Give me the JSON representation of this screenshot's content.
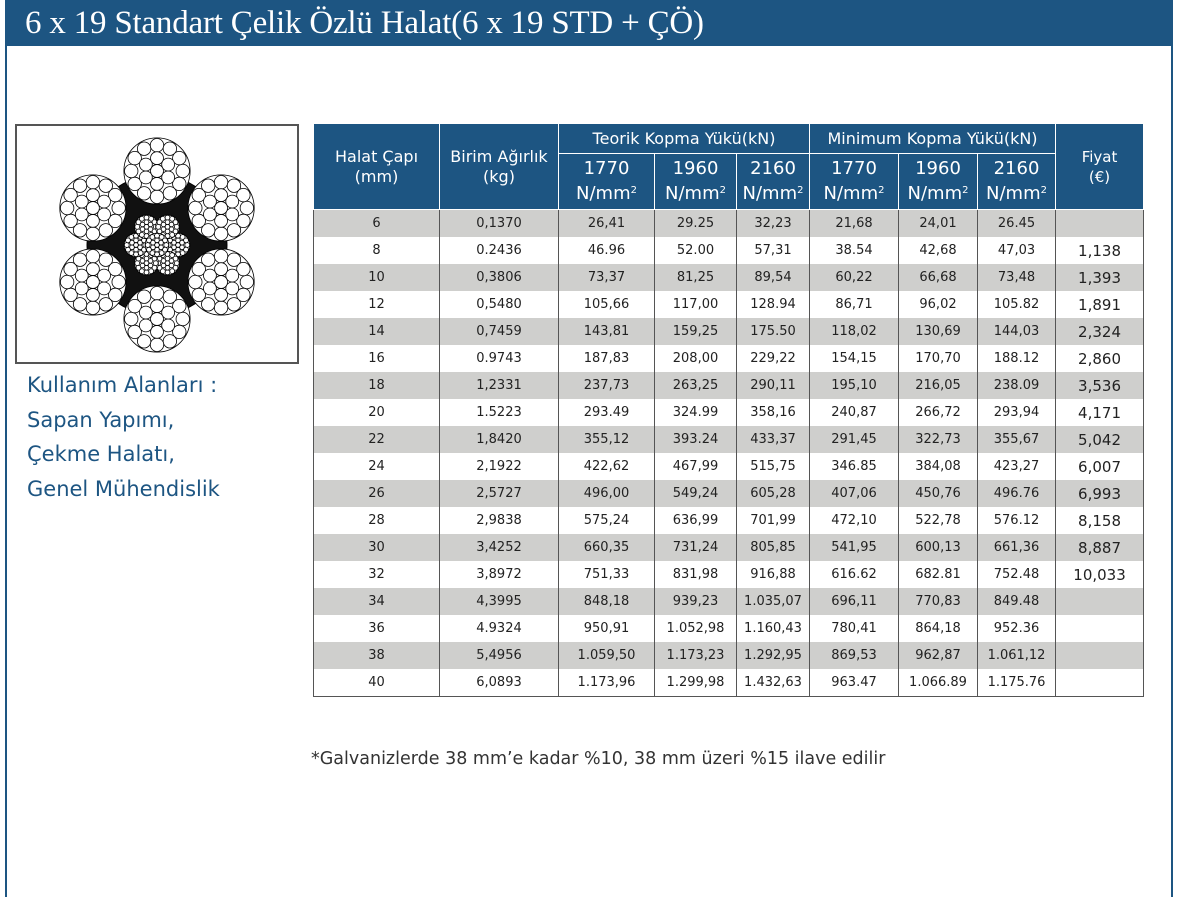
{
  "header": {
    "title": "6 x 19 Standart Çelik Özlü Halat(6 x 19 STD + ÇÖ)"
  },
  "usage": {
    "lines": [
      "Kullanım Alanları :",
      "Sapan Yapımı,",
      "Çekme Halatı,",
      "Genel Mühendislik"
    ]
  },
  "table": {
    "col_diameter": "Halat Çapı",
    "col_diameter_unit": "(mm)",
    "col_weight": "Birim Ağırlık",
    "col_weight_unit": "(kg)",
    "group_theoretical": "Teorik Kopma Yükü(kN)",
    "group_minimum": "Minimum Kopma Yükü(kN)",
    "col_price": "Fiyat",
    "col_price_unit": "(€)",
    "grades": [
      "1770",
      "1960",
      "2160",
      "1770",
      "1960",
      "2160"
    ],
    "grade_unit": "N/mm",
    "grade_unit_sup": "2",
    "rows": [
      [
        "6",
        "0,1370",
        "26,41",
        "29.25",
        "32,23",
        "21,68",
        "24,01",
        "26.45",
        ""
      ],
      [
        "8",
        "0.2436",
        "46.96",
        "52.00",
        "57,31",
        "38.54",
        "42,68",
        "47,03",
        "1,138"
      ],
      [
        "10",
        "0,3806",
        "73,37",
        "81,25",
        "89,54",
        "60,22",
        "66,68",
        "73,48",
        "1,393"
      ],
      [
        "12",
        "0,5480",
        "105,66",
        "117,00",
        "128.94",
        "86,71",
        "96,02",
        "105.82",
        "1,891"
      ],
      [
        "14",
        "0,7459",
        "143,81",
        "159,25",
        "175.50",
        "118,02",
        "130,69",
        "144,03",
        "2,324"
      ],
      [
        "16",
        "0.9743",
        "187,83",
        "208,00",
        "229,22",
        "154,15",
        "170,70",
        "188.12",
        "2,860"
      ],
      [
        "18",
        "1,2331",
        "237,73",
        "263,25",
        "290,11",
        "195,10",
        "216,05",
        "238.09",
        "3,536"
      ],
      [
        "20",
        "1.5223",
        "293.49",
        "324.99",
        "358,16",
        "240,87",
        "266,72",
        "293,94",
        "4,171"
      ],
      [
        "22",
        "1,8420",
        "355,12",
        "393.24",
        "433,37",
        "291,45",
        "322,73",
        "355,67",
        "5,042"
      ],
      [
        "24",
        "2,1922",
        "422,62",
        "467,99",
        "515,75",
        "346.85",
        "384,08",
        "423,27",
        "6,007"
      ],
      [
        "26",
        "2,5727",
        "496,00",
        "549,24",
        "605,28",
        "407,06",
        "450,76",
        "496.76",
        "6,993"
      ],
      [
        "28",
        "2,9838",
        "575,24",
        "636,99",
        "701,99",
        "472,10",
        "522,78",
        "576.12",
        "8,158"
      ],
      [
        "30",
        "3,4252",
        "660,35",
        "731,24",
        "805,85",
        "541,95",
        "600,13",
        "661,36",
        "8,887"
      ],
      [
        "32",
        "3,8972",
        "751,33",
        "831,98",
        "916,88",
        "616.62",
        "682.81",
        "752.48",
        "10,033"
      ],
      [
        "34",
        "4,3995",
        "848,18",
        "939,23",
        "1.035,07",
        "696,11",
        "770,83",
        "849.48",
        ""
      ],
      [
        "36",
        "4.9324",
        "950,91",
        "1.052,98",
        "1.160,43",
        "780,41",
        "864,18",
        "952.36",
        ""
      ],
      [
        "38",
        "5,4956",
        "1.059,50",
        "1.173,23",
        "1.292,95",
        "869,53",
        "962,87",
        "1.061,12",
        ""
      ],
      [
        "40",
        "6,0893",
        "1.173,96",
        "1.299,98",
        "1.432,63",
        "963.47",
        "1.066.89",
        "1.175.76",
        ""
      ]
    ]
  },
  "footnote": "*Galvanizlerde 38 mm’e kadar %10, 38 mm üzeri %15 ilave edilir",
  "colors": {
    "brand_blue": "#1d5582",
    "row_stripe": "#cfcfcd"
  }
}
